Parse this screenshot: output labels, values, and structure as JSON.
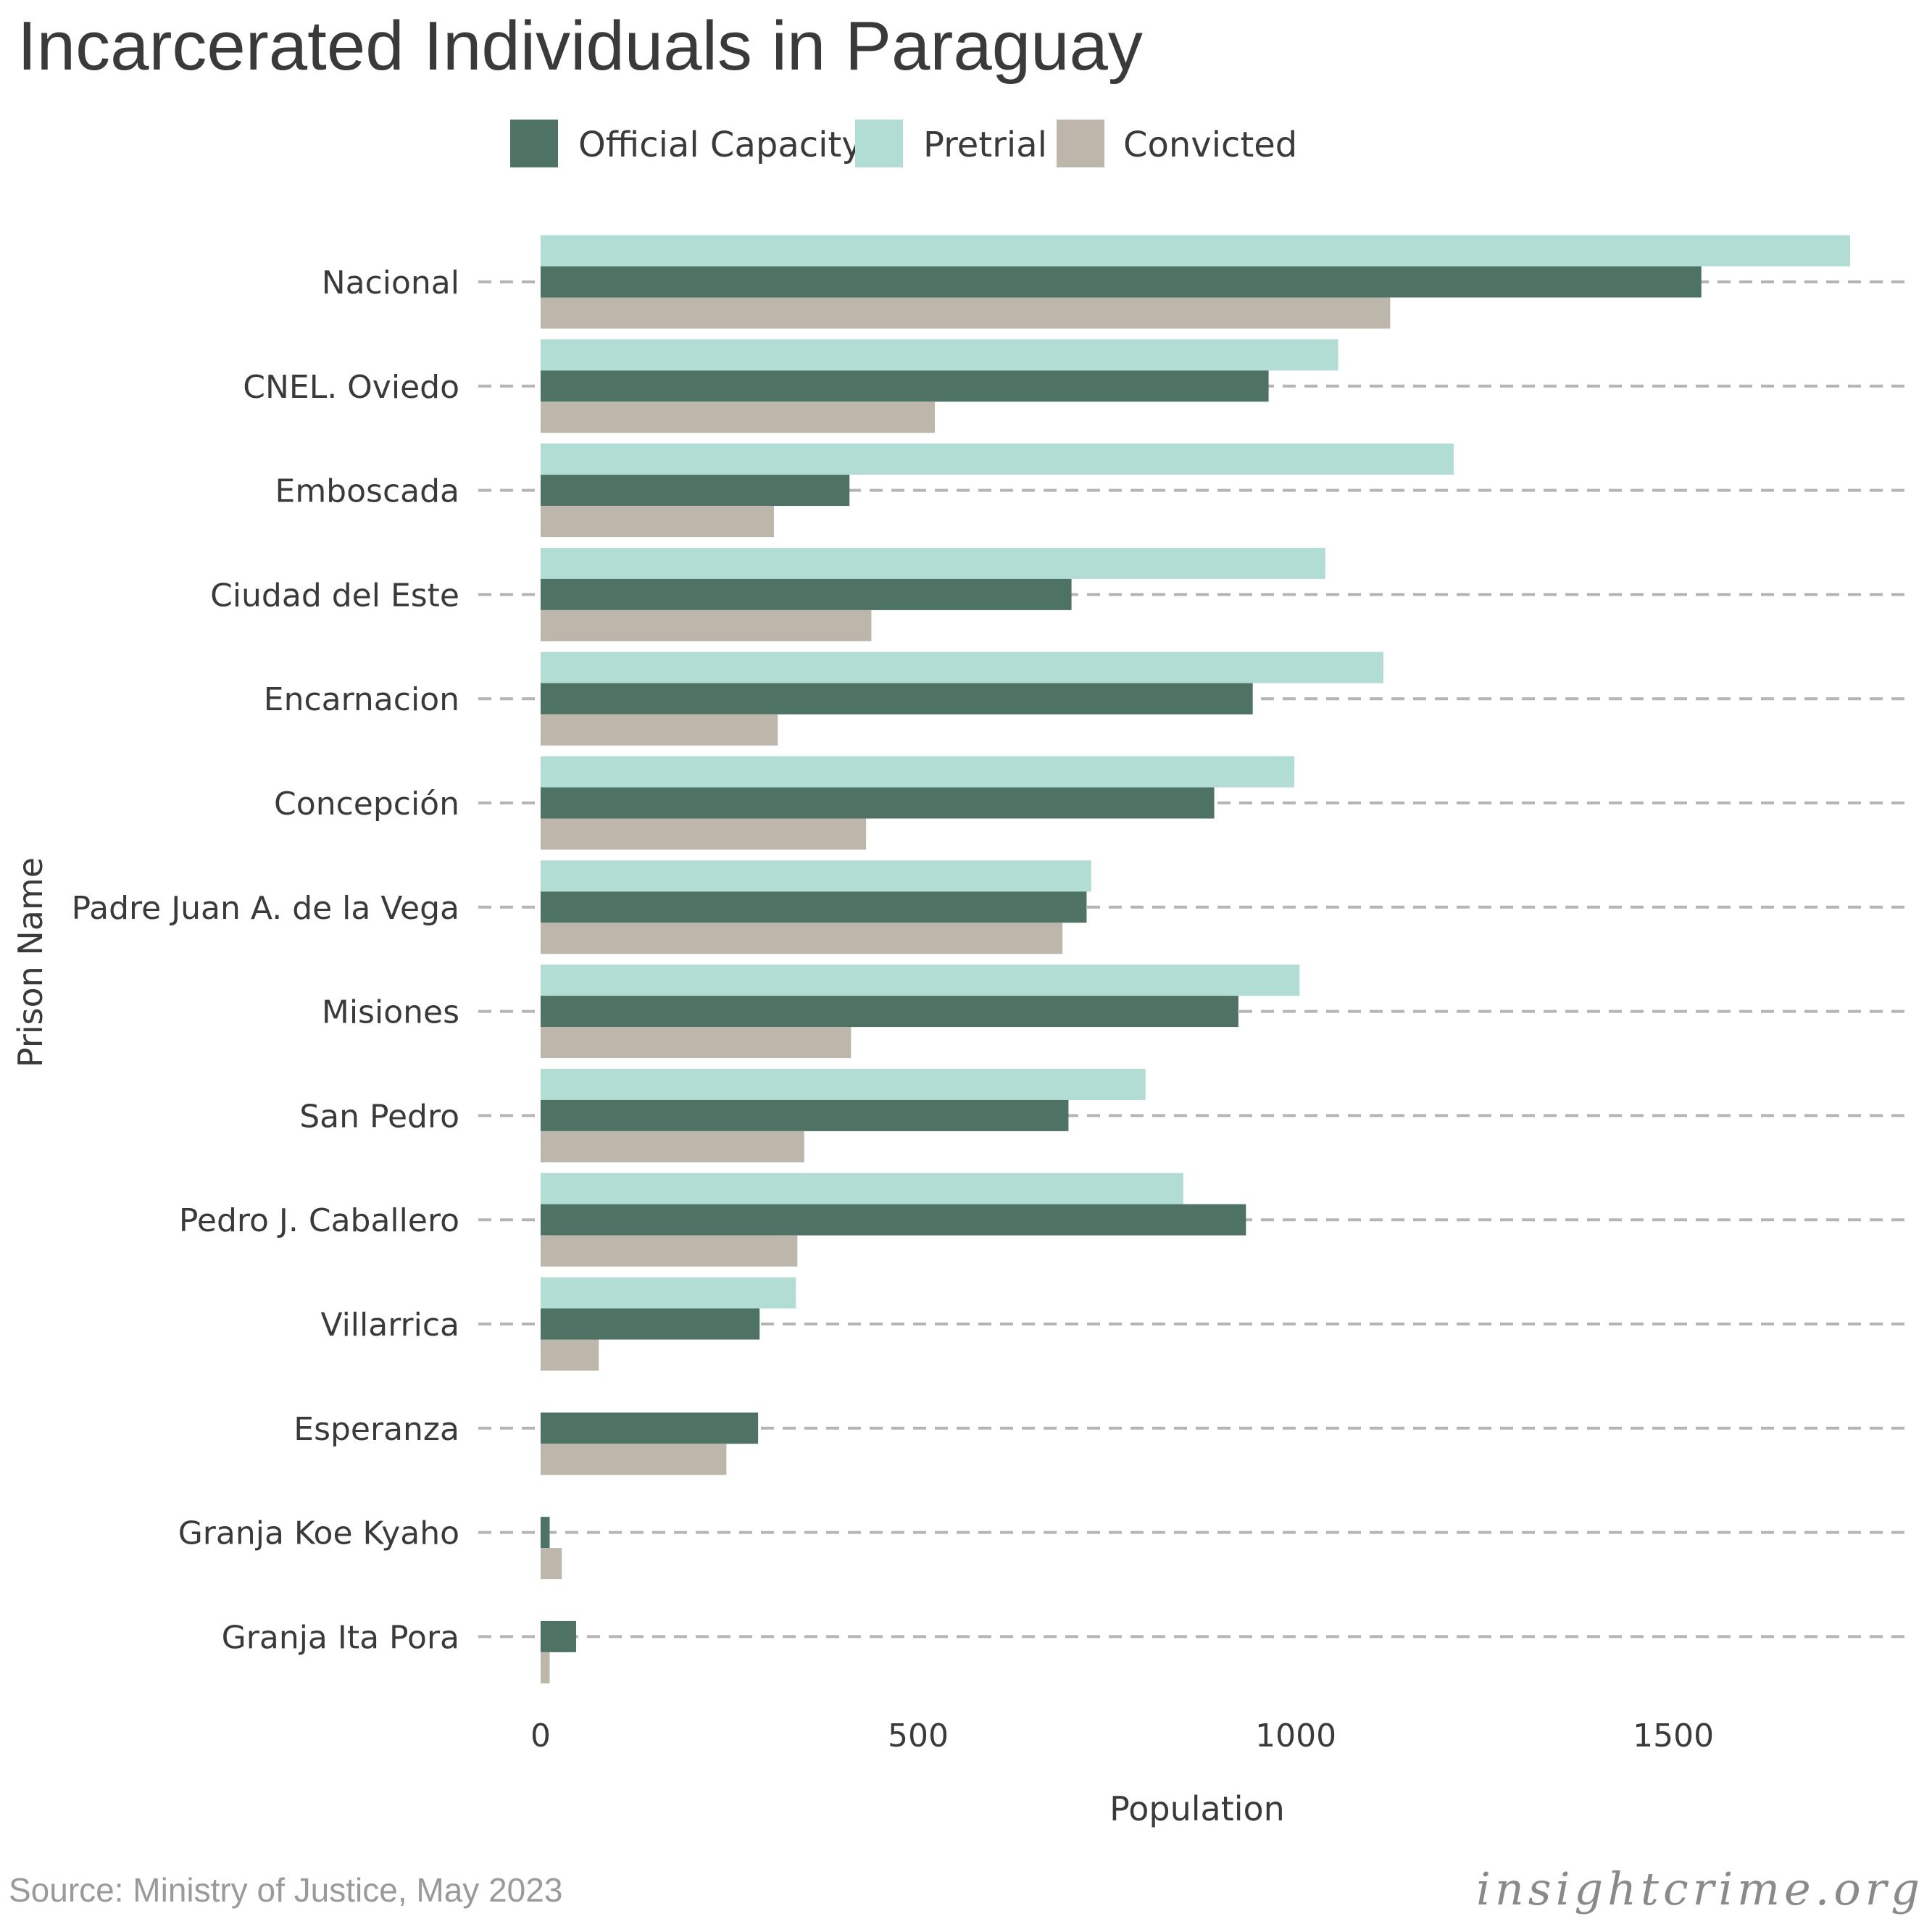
{
  "chart_data": {
    "type": "bar",
    "orientation": "horizontal",
    "title": "Incarcerated Individuals in Paraguay",
    "xlabel": "Population",
    "ylabel": "Prison Name",
    "xlim": [
      0,
      1800
    ],
    "xticks": [
      0,
      500,
      1000,
      1500
    ],
    "grid": "dashed horizontal lines per category",
    "legend_position": "top",
    "categories": [
      "Nacional",
      "CNEL. Oviedo",
      "Emboscada",
      "Ciudad del Este",
      "Encarnacion",
      "Concepción",
      "Padre Juan A. de la Vega",
      "Misiones",
      "San Pedro",
      "Pedro J. Caballero",
      "Villarrica",
      "Esperanza",
      "Granja Koe Kyaho",
      "Granja Ita Pora"
    ],
    "series": [
      {
        "name": "Official Capacity",
        "color": "#4e7263",
        "values": [
          1537,
          964,
          409,
          703,
          943,
          892,
          723,
          924,
          699,
          934,
          290,
          288,
          12,
          47
        ]
      },
      {
        "name": "Pretrial",
        "color": "#b1ddd4",
        "values": [
          1734,
          1056,
          1209,
          1039,
          1116,
          998,
          729,
          1005,
          801,
          851,
          338,
          null,
          null,
          null
        ]
      },
      {
        "name": "Convicted",
        "color": "#bcb6ab",
        "values": [
          1125,
          522,
          309,
          438,
          314,
          431,
          691,
          411,
          349,
          340,
          77,
          246,
          28,
          12
        ]
      }
    ]
  },
  "source_text": "Source: Ministry of Justice, May 2023",
  "brand_text": "insightcrime.org"
}
